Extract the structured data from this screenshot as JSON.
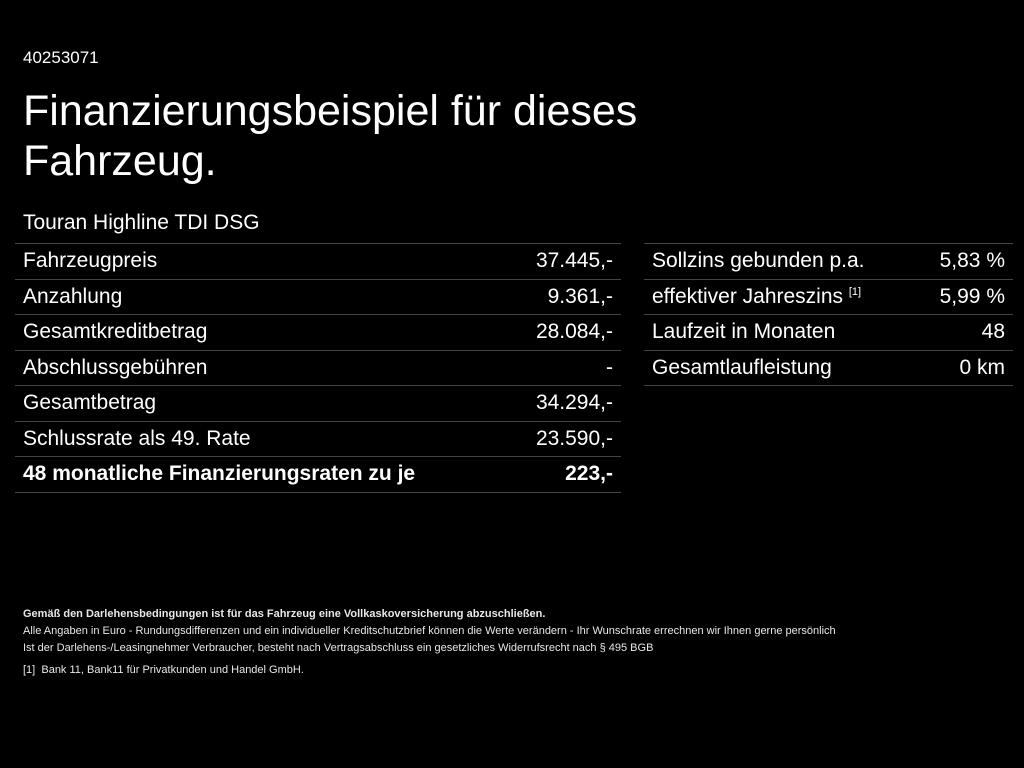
{
  "id": "40253071",
  "title": "Finanzierungsbeispiel für dieses Fahrzeug.",
  "model": "Touran Highline TDI DSG",
  "left_rows": [
    {
      "label": "Fahrzeugpreis",
      "value": "37.445,-"
    },
    {
      "label": "Anzahlung",
      "value": "9.361,-"
    },
    {
      "label": "Gesamtkreditbetrag",
      "value": "28.084,-"
    },
    {
      "label": "Abschlussgebühren",
      "value": "-"
    },
    {
      "label": "Gesamtbetrag",
      "value": "34.294,-"
    },
    {
      "label": "Schlussrate als 49. Rate",
      "value": "23.590,-"
    },
    {
      "label": "48 monatliche Finanzierungsraten zu je",
      "value": "223,-"
    }
  ],
  "right_rows": [
    {
      "label": "Sollzins gebunden p.a.",
      "value": "5,83 %"
    },
    {
      "label": "effektiver Jahreszins",
      "sup": "[1]",
      "value": "5,99 %"
    },
    {
      "label": "Laufzeit in Monaten",
      "value": "48"
    },
    {
      "label": "Gesamtlaufleistung",
      "value": "0 km"
    }
  ],
  "notes": {
    "bold": "Gemäß den Darlehensbedingungen ist für das Fahrzeug eine Vollkaskoversicherung abzuschließen.",
    "line1": "Alle Angaben in Euro - Rundungsdifferenzen und ein individueller Kreditschutzbrief können die Werte verändern - Ihr Wunschrate errechnen wir Ihnen gerne persönlich",
    "line2": "Ist der Darlehens-/Leasingnehmer Verbraucher, besteht nach Vertragsabschluss ein gesetzliches Widerrufsrecht nach § 495 BGB",
    "fn_mark": "[1]",
    "fn_text": "Bank 11, Bank11 für Privatkunden und Handel GmbH."
  }
}
